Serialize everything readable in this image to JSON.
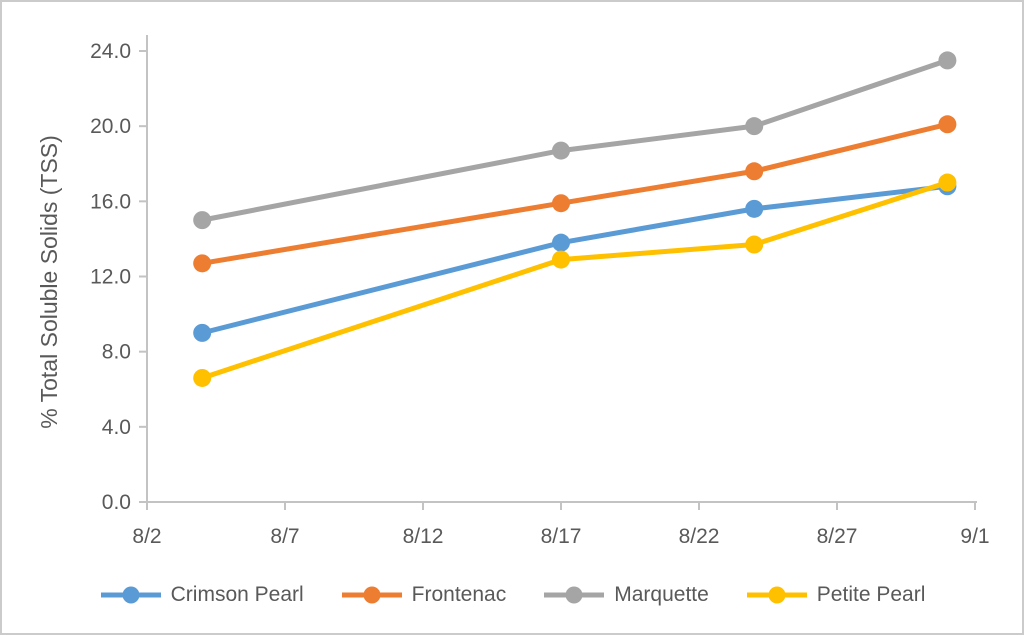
{
  "chart_data": {
    "type": "line",
    "title": "",
    "xlabel": "",
    "ylabel": "% Total Soluble Solids (TSS)",
    "ylim": [
      0.0,
      24.0
    ],
    "y_ticks": [
      0,
      4,
      8,
      12,
      16,
      20,
      24
    ],
    "y_tick_labels": [
      "0.0",
      "4.0",
      "8.0",
      "12.0",
      "16.0",
      "20.0",
      "24.0"
    ],
    "x_axis_range_days": [
      0,
      30
    ],
    "x_tick_days": [
      0,
      5,
      10,
      15,
      20,
      25,
      30
    ],
    "x_tick_labels": [
      "8/2",
      "8/7",
      "8/12",
      "8/17",
      "8/22",
      "8/27",
      "9/1"
    ],
    "x_dates": [
      "8/4",
      "8/17",
      "8/24",
      "8/31"
    ],
    "x_days": [
      2,
      15,
      22,
      29
    ],
    "series": [
      {
        "name": "Crimson Pearl",
        "color": "#5B9BD5",
        "values": [
          9.0,
          13.8,
          15.6,
          16.8
        ]
      },
      {
        "name": "Frontenac",
        "color": "#ED7D31",
        "values": [
          12.7,
          15.9,
          17.6,
          20.1
        ]
      },
      {
        "name": "Marquette",
        "color": "#A5A5A5",
        "values": [
          15.0,
          18.7,
          20.0,
          23.5
        ]
      },
      {
        "name": "Petite Pearl",
        "color": "#FFC000",
        "values": [
          6.6,
          12.9,
          13.7,
          17.0
        ]
      }
    ],
    "grid": false,
    "legend_position": "bottom",
    "axis_color": "#C3C3C3",
    "text_color": "#595959",
    "background_color": "#FFFFFF"
  }
}
